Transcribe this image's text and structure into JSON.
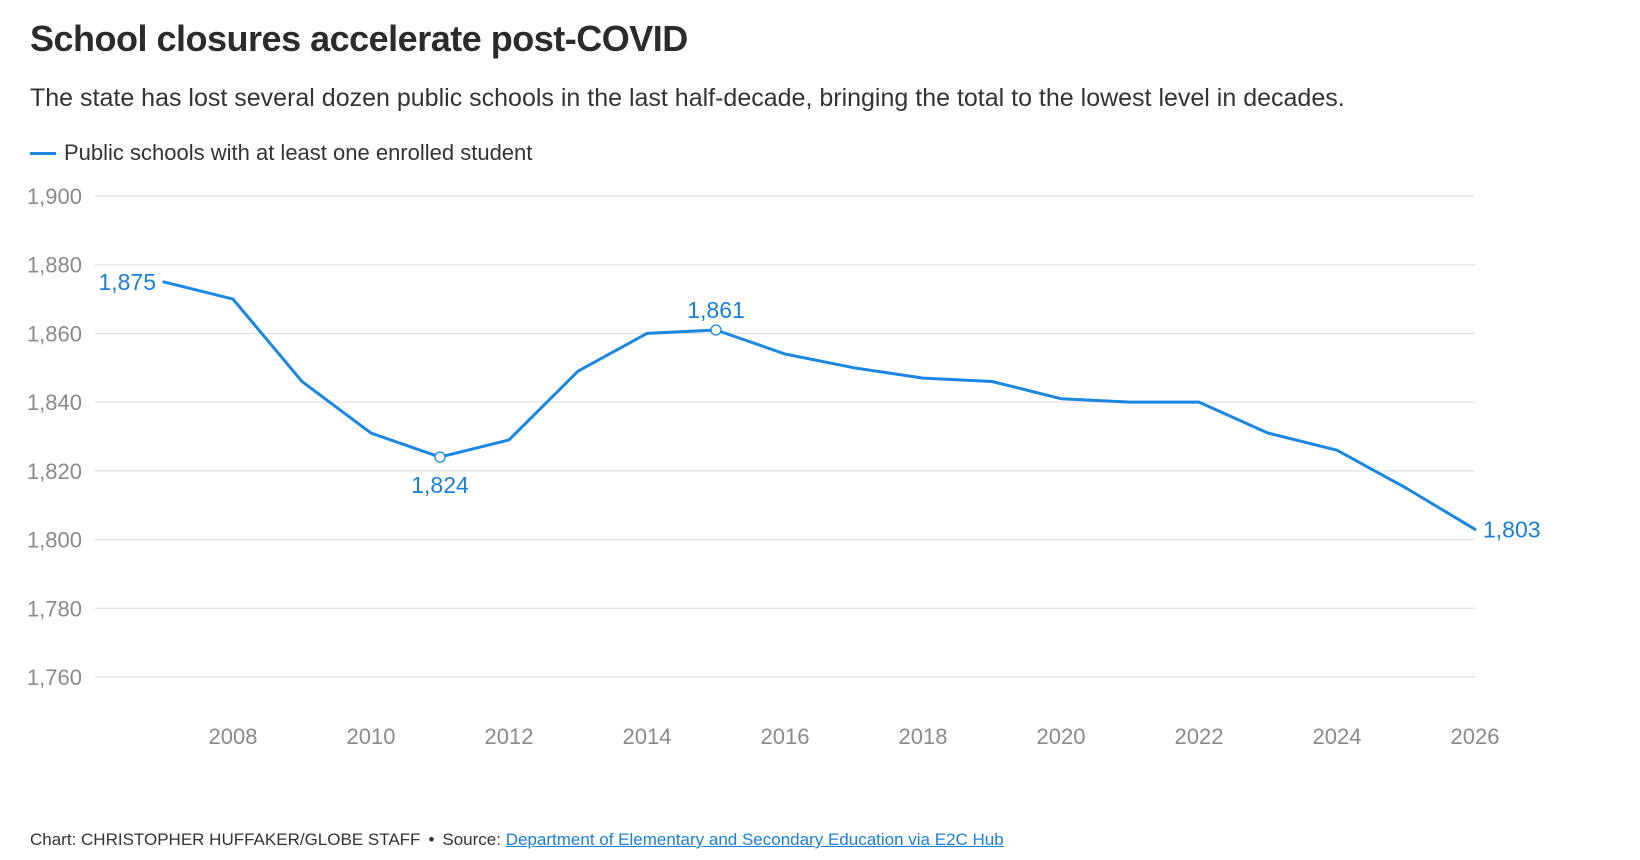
{
  "header": {
    "title": "School closures accelerate post-COVID",
    "subtitle": "The state has lost several dozen public schools in the last half-decade, bringing the total to the lowest level in decades."
  },
  "footer": {
    "credit": "Chart: CHRISTOPHER HUFFAKER/GLOBE STAFF",
    "separator": "•",
    "source_label": "Source:",
    "source_link": "Department of Elementary and Secondary Education via E2C Hub"
  },
  "colors": {
    "line": "#1a87e0",
    "grid": "#e2e2e2",
    "tick_label": "#8a8a8a",
    "annotation": "#1a7fd6"
  },
  "chart_data": {
    "type": "line",
    "title": "School closures accelerate post-COVID",
    "xlabel": "",
    "ylabel": "",
    "xlim": [
      2006,
      2026
    ],
    "ylim": [
      1760,
      1900
    ],
    "yticks": [
      1760,
      1780,
      1800,
      1820,
      1840,
      1860,
      1880,
      1900
    ],
    "ytick_labels": [
      "1,760",
      "1,780",
      "1,800",
      "1,820",
      "1,840",
      "1,860",
      "1,880",
      "1,900"
    ],
    "xticks": [
      2008,
      2010,
      2012,
      2014,
      2016,
      2018,
      2020,
      2022,
      2024,
      2026
    ],
    "xtick_labels": [
      "2008",
      "2010",
      "2012",
      "2014",
      "2016",
      "2018",
      "2020",
      "2022",
      "2024",
      "2026"
    ],
    "grid": true,
    "legend": "top-left",
    "series": [
      {
        "name": "Public schools with at least one enrolled student",
        "x": [
          2007,
          2008,
          2009,
          2010,
          2011,
          2012,
          2013,
          2014,
          2015,
          2016,
          2017,
          2018,
          2019,
          2020,
          2021,
          2022,
          2023,
          2024,
          2025,
          2026
        ],
        "y": [
          1875,
          1870,
          1846,
          1831,
          1824,
          1829,
          1849,
          1860,
          1861,
          1854,
          1850,
          1847,
          1846,
          1841,
          1840,
          1840,
          1831,
          1826,
          1815,
          1803
        ]
      }
    ],
    "annotations": [
      {
        "x": 2007,
        "y": 1875,
        "text": "1,875",
        "position": "left",
        "marker": false
      },
      {
        "x": 2011,
        "y": 1824,
        "text": "1,824",
        "position": "below",
        "marker": true
      },
      {
        "x": 2015,
        "y": 1861,
        "text": "1,861",
        "position": "above",
        "marker": true
      },
      {
        "x": 2026,
        "y": 1803,
        "text": "1,803",
        "position": "right",
        "marker": false
      }
    ]
  }
}
